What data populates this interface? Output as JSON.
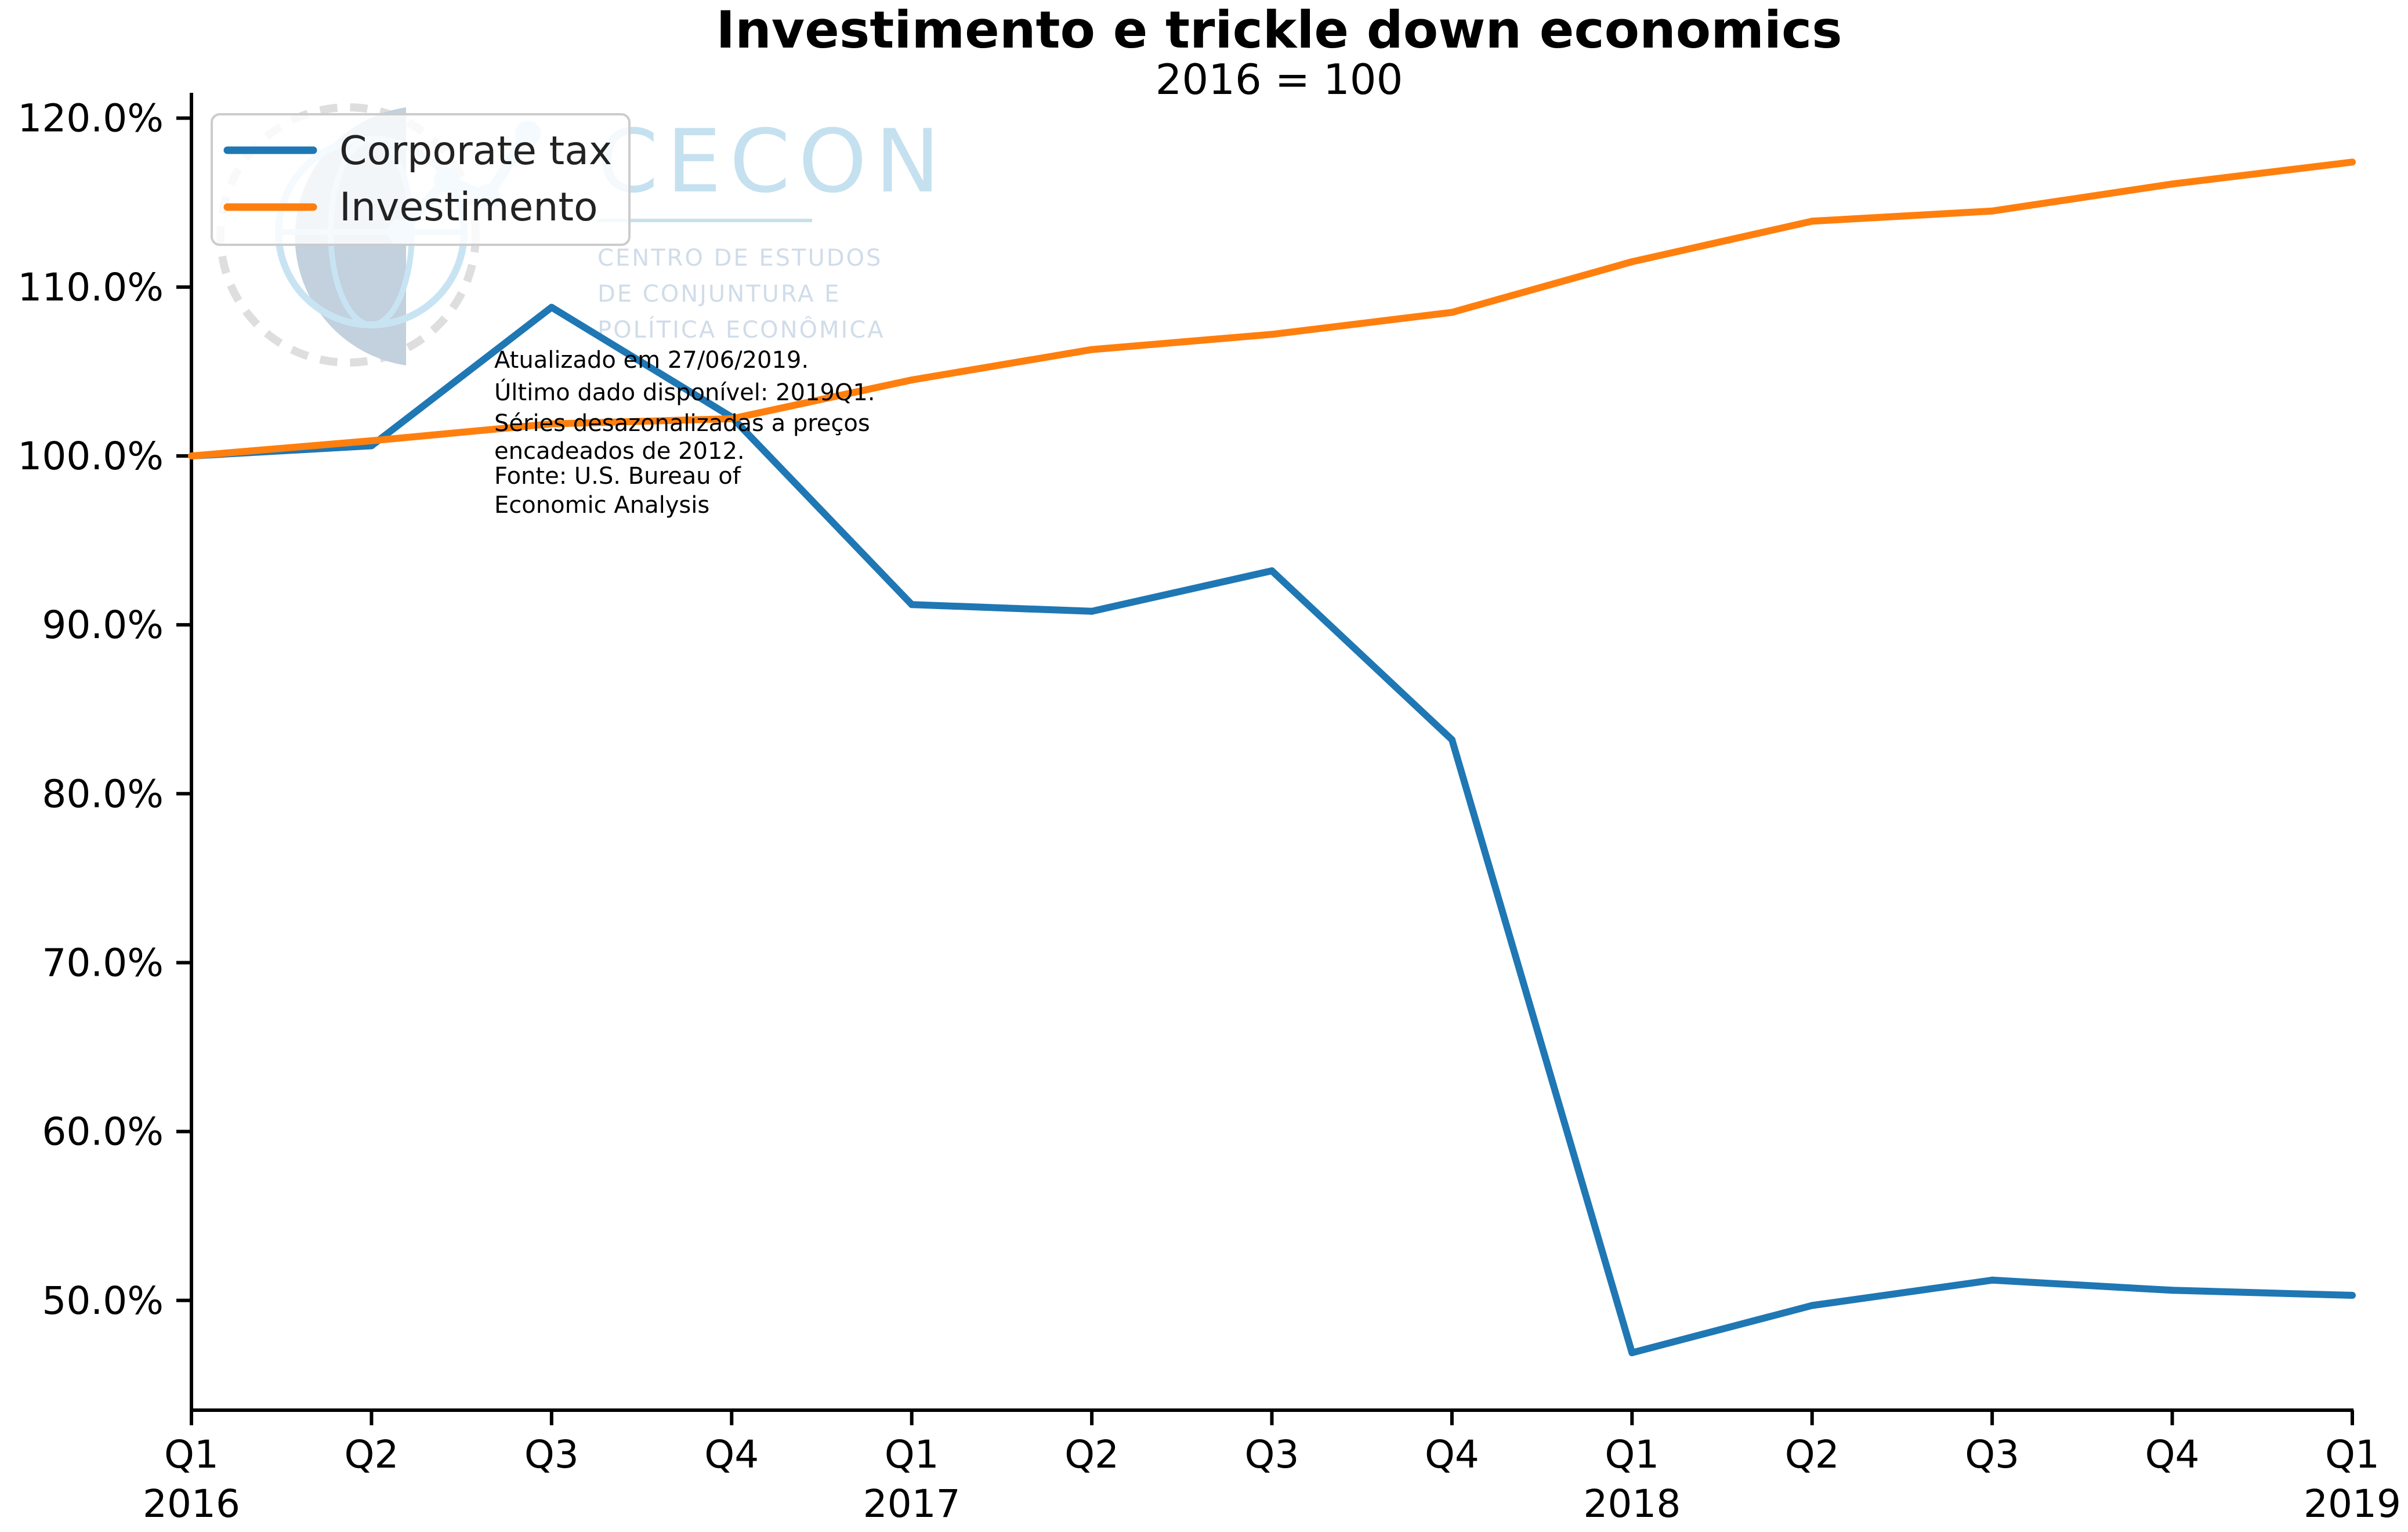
{
  "chart_data": {
    "type": "line",
    "title": "Investimento e trickle down economics",
    "subtitle": "2016 = 100",
    "x": [
      "2016Q1",
      "2016Q2",
      "2016Q3",
      "2016Q4",
      "2017Q1",
      "2017Q2",
      "2017Q3",
      "2017Q4",
      "2018Q1",
      "2018Q2",
      "2018Q3",
      "2018Q4",
      "2019Q1"
    ],
    "x_tick_labels": [
      {
        "quarter": "Q1",
        "year": "2016"
      },
      {
        "quarter": "Q2",
        "year": ""
      },
      {
        "quarter": "Q3",
        "year": ""
      },
      {
        "quarter": "Q4",
        "year": ""
      },
      {
        "quarter": "Q1",
        "year": "2017"
      },
      {
        "quarter": "Q2",
        "year": ""
      },
      {
        "quarter": "Q3",
        "year": ""
      },
      {
        "quarter": "Q4",
        "year": ""
      },
      {
        "quarter": "Q1",
        "year": "2018"
      },
      {
        "quarter": "Q2",
        "year": ""
      },
      {
        "quarter": "Q3",
        "year": ""
      },
      {
        "quarter": "Q4",
        "year": ""
      },
      {
        "quarter": "Q1",
        "year": "2019"
      }
    ],
    "series": [
      {
        "name": "Corporate tax",
        "color": "#1f77b4",
        "values": [
          100.0,
          100.6,
          108.8,
          102.3,
          91.2,
          90.8,
          93.2,
          83.2,
          46.9,
          49.7,
          51.2,
          50.6,
          50.3
        ]
      },
      {
        "name": "Investimento",
        "color": "#ff7f0e",
        "values": [
          100.0,
          100.9,
          101.9,
          102.2,
          104.5,
          106.3,
          107.2,
          108.5,
          111.5,
          113.9,
          114.5,
          116.1,
          117.4
        ]
      }
    ],
    "ylim": [
      43.5,
      121.5
    ],
    "y_ticks": [
      50,
      60,
      70,
      80,
      90,
      100,
      110,
      120
    ],
    "y_tick_labels": [
      "50.0%",
      "60.0%",
      "70.0%",
      "80.0%",
      "90.0%",
      "100.0%",
      "110.0%",
      "120.0%"
    ],
    "xlabel": "",
    "ylabel": "",
    "grid": false,
    "legend_position": "top-left",
    "annotation": [
      "Atualizado em 27/06/2019.",
      "Último dado disponível: 2019Q1.",
      "Séries desazonalizadas a preços",
      "encadeados de 2012.",
      "Fonte: U.S. Bureau of",
      "Economic Analysis"
    ]
  },
  "watermark": {
    "name": "CECON",
    "lines": [
      "CENTRO DE ESTUDOS",
      "DE CONJUNTURA E",
      "POLÍTICA ECONÔMICA"
    ]
  }
}
